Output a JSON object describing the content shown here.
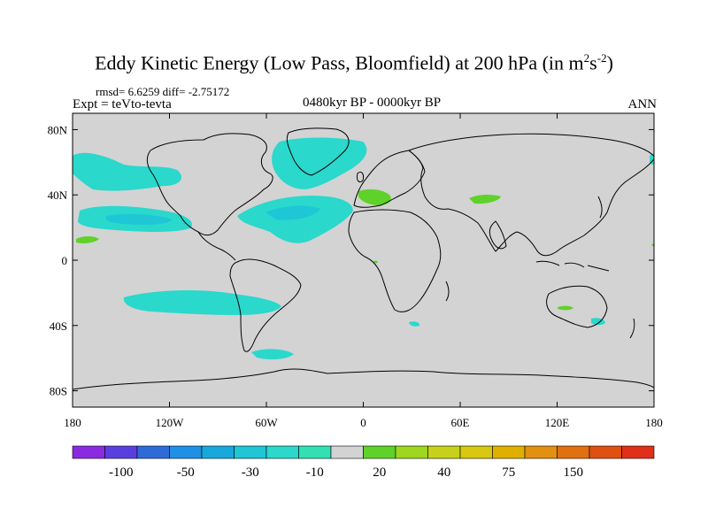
{
  "title": {
    "main": "Eddy Kinetic Energy (Low Pass, Bloomfield) at 200 hPa (in m",
    "exp1": "2",
    "mid": "s",
    "exp2": "-2",
    "end": ")"
  },
  "stats": "rmsd= 6.6259 diff= -2.75172",
  "experiment": "Expt = teVto-tevta",
  "period": "0480kyr BP - 0000kyr BP",
  "season": "ANN",
  "map": {
    "projection": "cylindrical-equidistant",
    "lon_range": [
      -180,
      180
    ],
    "lat_range": [
      -90,
      90
    ],
    "land_color": "#d3d3d3",
    "x_ticks": [
      {
        "value": -180,
        "label": "180"
      },
      {
        "value": -120,
        "label": "120W"
      },
      {
        "value": -60,
        "label": "60W"
      },
      {
        "value": 0,
        "label": "0"
      },
      {
        "value": 60,
        "label": "60E"
      },
      {
        "value": 120,
        "label": "120E"
      },
      {
        "value": 180,
        "label": "180"
      }
    ],
    "y_ticks": [
      {
        "value": 80,
        "label": "80N"
      },
      {
        "value": 40,
        "label": "40N"
      },
      {
        "value": 0,
        "label": "0"
      },
      {
        "value": -40,
        "label": "40S"
      },
      {
        "value": -80,
        "label": "80S"
      }
    ]
  },
  "colorbar": {
    "colors": [
      "#8a2be2",
      "#5a3fe0",
      "#2f6bd8",
      "#1e90e6",
      "#18a9dc",
      "#1ec6d6",
      "#2ad8cc",
      "#32e0b4",
      "#d3d3d3",
      "#5fd22a",
      "#9fd61e",
      "#c6d21a",
      "#d8c810",
      "#e0b000",
      "#e39010",
      "#e07010",
      "#e05010",
      "#e0301a"
    ],
    "labels": [
      {
        "boundary": 1,
        "text": "-100"
      },
      {
        "boundary": 3,
        "text": "-50"
      },
      {
        "boundary": 5,
        "text": "-30"
      },
      {
        "boundary": 7,
        "text": "-10"
      },
      {
        "boundary": 9,
        "text": "20"
      },
      {
        "boundary": 11,
        "text": "40"
      },
      {
        "boundary": 13,
        "text": "75"
      },
      {
        "boundary": 15,
        "text": "150"
      }
    ]
  },
  "anomaly_regions": [
    {
      "level": "-10",
      "color": "#2ad8cc",
      "lon": -150,
      "lat": 60
    },
    {
      "level": "-10",
      "color": "#2ad8cc",
      "lon": -130,
      "lat": 25
    },
    {
      "level": "-10",
      "color": "#2ad8cc",
      "lon": -40,
      "lat": 30
    },
    {
      "level": "-10",
      "color": "#2ad8cc",
      "lon": -25,
      "lat": 70
    },
    {
      "level": "-10",
      "color": "#2ad8cc",
      "lon": -90,
      "lat": -20
    },
    {
      "level": "-10",
      "color": "#2ad8cc",
      "lon": -45,
      "lat": -48
    },
    {
      "level": "-10",
      "color": "#2ad8cc",
      "lon": 150,
      "lat": -35
    },
    {
      "level": "20",
      "color": "#5fd22a",
      "lon": 15,
      "lat": 40
    },
    {
      "level": "20",
      "color": "#5fd22a",
      "lon": 70,
      "lat": 38
    },
    {
      "level": "20",
      "color": "#5fd22a",
      "lon": -170,
      "lat": 15
    },
    {
      "level": "20",
      "color": "#5fd22a",
      "lon": 127,
      "lat": -27
    }
  ]
}
